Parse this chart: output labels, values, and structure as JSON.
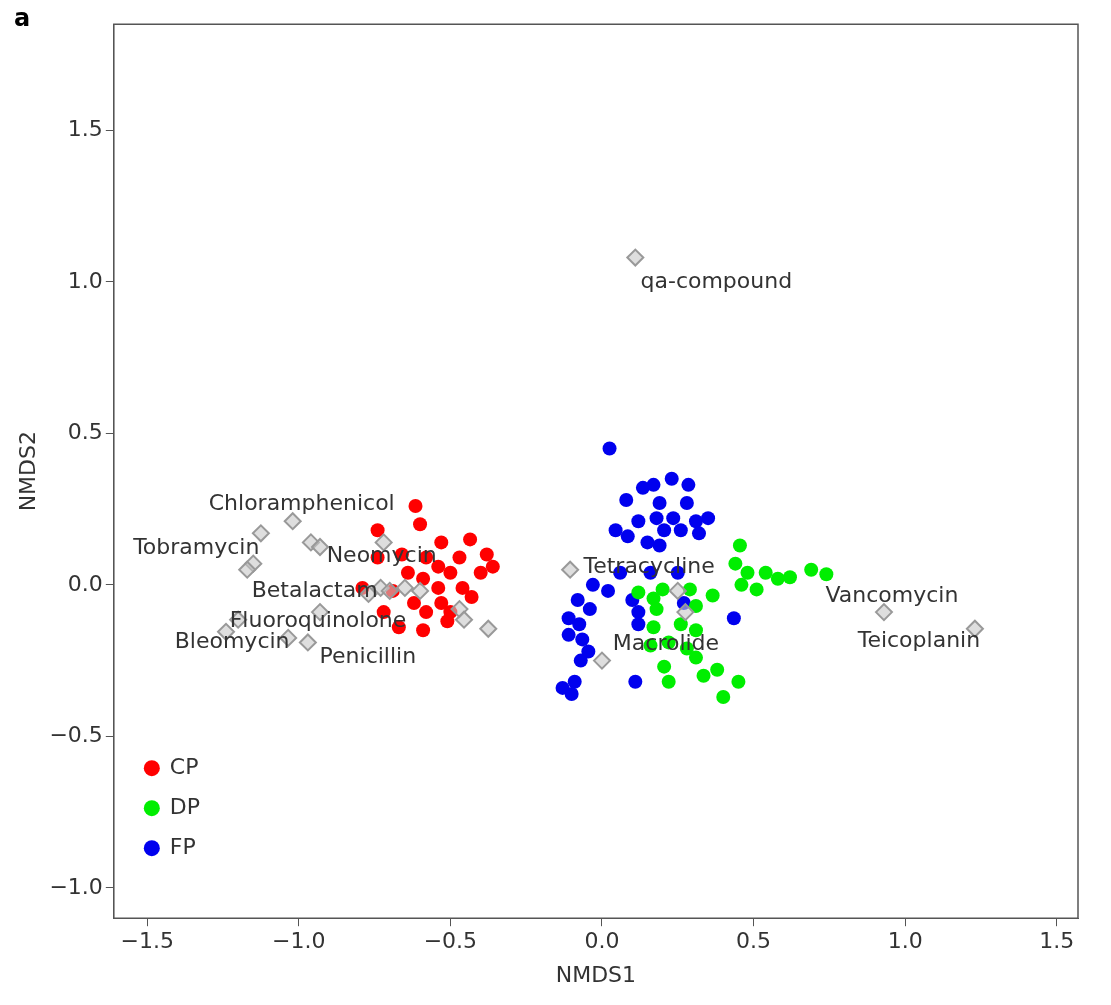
{
  "chart_data": {
    "type": "scatter",
    "xlabel": "NMDS1",
    "ylabel": "NMDS2",
    "xlim": [
      -1.61,
      1.57
    ],
    "ylim": [
      -1.1,
      1.85
    ],
    "xticks": [
      {
        "value": -1.5,
        "label": "−1.5"
      },
      {
        "value": -1,
        "label": "−1.0"
      },
      {
        "value": -0.5,
        "label": "−0.5"
      },
      {
        "value": 0,
        "label": "0.0"
      },
      {
        "value": 0.5,
        "label": "0.5"
      },
      {
        "value": 1,
        "label": "1.0"
      },
      {
        "value": 1.5,
        "label": "1.5"
      }
    ],
    "yticks": [
      {
        "value": -1,
        "label": "−1.0"
      },
      {
        "value": -0.5,
        "label": "−0.5"
      },
      {
        "value": 0,
        "label": "0.0"
      },
      {
        "value": 0.5,
        "label": "0.5"
      },
      {
        "value": 1,
        "label": "1.0"
      },
      {
        "value": 1.5,
        "label": "1.5"
      }
    ],
    "grid": false,
    "legend": "bottom left",
    "marker": "circle",
    "series": [
      {
        "name": "CP",
        "color": "#ff0000",
        "x": [
          -0.74,
          -0.615,
          -0.6,
          -0.435,
          -0.74,
          -0.79,
          -0.72,
          -0.67,
          -0.59,
          -0.53,
          -0.5,
          -0.4,
          -0.58,
          -0.64,
          -0.54,
          -0.46,
          -0.5,
          -0.58,
          -0.62,
          -0.66,
          -0.53,
          -0.38,
          -0.43,
          -0.54,
          -0.59,
          -0.47,
          -0.69,
          -0.51,
          -0.36
        ],
        "values": [
          0.18,
          0.26,
          0.2,
          0.15,
          0.09,
          -0.01,
          -0.09,
          -0.14,
          -0.15,
          -0.06,
          0.04,
          0.04,
          0.09,
          0.04,
          -0.01,
          -0.01,
          -0.09,
          -0.09,
          -0.06,
          0.1,
          0.14,
          0.1,
          -0.04,
          0.06,
          0.02,
          0.09,
          -0.02,
          -0.12,
          0.06
        ]
      },
      {
        "name": "DP",
        "color": "#00ee00",
        "x": [
          0.455,
          0.44,
          0.48,
          0.54,
          0.58,
          0.62,
          0.69,
          0.74,
          0.51,
          0.46,
          0.12,
          0.17,
          0.2,
          0.29,
          0.365,
          0.18,
          0.31,
          0.17,
          0.26,
          0.31,
          0.16,
          0.22,
          0.28,
          0.31,
          0.205,
          0.22,
          0.335,
          0.38,
          0.45,
          0.4
        ],
        "values": [
          0.13,
          0.07,
          0.04,
          0.04,
          0.02,
          0.025,
          0.05,
          0.035,
          -0.015,
          0,
          -0.025,
          -0.045,
          -0.015,
          -0.015,
          -0.035,
          -0.08,
          -0.07,
          -0.14,
          -0.13,
          -0.15,
          -0.2,
          -0.19,
          -0.21,
          -0.24,
          -0.27,
          -0.32,
          -0.3,
          -0.28,
          -0.32,
          -0.37
        ]
      },
      {
        "name": "FP",
        "color": "#0000ee",
        "x": [
          0.025,
          0.23,
          0.285,
          0.17,
          0.135,
          0.08,
          0.19,
          0.28,
          0.045,
          0.085,
          0.12,
          0.18,
          0.235,
          0.31,
          0.35,
          0.32,
          0.26,
          0.205,
          0.15,
          0.19,
          -0.03,
          0.02,
          -0.08,
          -0.04,
          -0.11,
          -0.075,
          -0.11,
          -0.065,
          -0.045,
          -0.07,
          -0.09,
          -0.13,
          -0.1,
          0.11,
          0.1,
          0.12,
          0.12,
          0.435,
          0.27,
          0.16,
          0.25,
          0.06
        ],
        "values": [
          0.45,
          0.35,
          0.33,
          0.33,
          0.32,
          0.28,
          0.27,
          0.27,
          0.18,
          0.16,
          0.21,
          0.22,
          0.22,
          0.21,
          0.22,
          0.17,
          0.18,
          0.18,
          0.14,
          0.13,
          0,
          -0.02,
          -0.05,
          -0.08,
          -0.11,
          -0.13,
          -0.165,
          -0.18,
          -0.22,
          -0.25,
          -0.32,
          -0.34,
          -0.36,
          -0.32,
          -0.05,
          -0.09,
          -0.13,
          -0.11,
          -0.06,
          0.04,
          0.04,
          0.04
        ]
      },
      {
        "color": "#999999",
        "marker": "diamond",
        "x": [
          0.11,
          -1.125,
          -1.02,
          -0.96,
          -0.93,
          -1.15,
          -1.17,
          -0.72,
          -0.93,
          -1.2,
          -1.24,
          -1.035,
          -0.97,
          -0.73,
          -0.77,
          -0.7,
          -0.65,
          -0.6,
          -0.47,
          -0.455,
          -0.375,
          -0.105,
          0.25,
          0.275,
          0,
          0.93,
          1.23
        ],
        "values": [
          1.08,
          0.17,
          0.21,
          0.14,
          0.125,
          0.07,
          0.05,
          0.14,
          -0.09,
          -0.115,
          -0.155,
          -0.175,
          -0.19,
          -0.01,
          -0.03,
          -0.02,
          -0.01,
          -0.02,
          -0.08,
          -0.115,
          -0.145,
          0.05,
          -0.02,
          -0.09,
          -0.25,
          -0.09,
          -0.145
        ]
      }
    ],
    "annotations": [
      "a",
      {
        "text": "qa-compound",
        "x": 0.11,
        "y": 1.08
      },
      {
        "text": "Chloramphenicol",
        "x": -1.02,
        "y": 0.21
      },
      {
        "text": "Tobramycin",
        "x": -1.15,
        "y": 0.07
      },
      {
        "text": "Neomycin",
        "x": -0.72,
        "y": 0.14
      },
      {
        "text": "Betalactam",
        "x": -0.73,
        "y": -0.01
      },
      {
        "text": "Fluoroquinolone",
        "x": -0.93,
        "y": -0.09
      },
      {
        "text": "Bleomycin",
        "x": -1.2,
        "y": -0.115
      },
      {
        "text": "Penicillin",
        "x": -0.97,
        "y": -0.19
      },
      {
        "text": "Tetracycline",
        "x": -0.105,
        "y": 0.05
      },
      {
        "text": "Macrolide",
        "x": 0,
        "y": -0.25
      },
      {
        "text": "Vancomycin",
        "x": 0.93,
        "y": -0.09
      },
      {
        "text": "Teicoplanin",
        "x": 1.23,
        "y": -0.145
      }
    ]
  }
}
